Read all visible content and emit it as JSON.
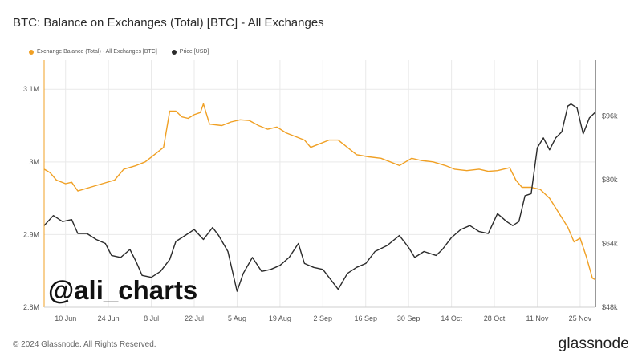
{
  "title": "BTC: Balance on Exchanges (Total) [BTC] - All Exchanges",
  "watermark": "@ali_charts",
  "footer": {
    "copyright": "© 2024 Glassnode. All Rights Reserved.",
    "brand": "glassnode"
  },
  "colors": {
    "balance": "#f0a024",
    "price": "#2b2b2b",
    "grid": "#e9e9e9",
    "axis": "#f0a024"
  },
  "chart_data": {
    "type": "line",
    "legend_placement": "top-left",
    "grid": true,
    "x_ticks": [
      "10 Jun",
      "24 Jun",
      "8 Jul",
      "22 Jul",
      "5 Aug",
      "19 Aug",
      "2 Sep",
      "16 Sep",
      "30 Sep",
      "14 Oct",
      "28 Oct",
      "11 Nov",
      "25 Nov"
    ],
    "x_range": [
      "2024-06-03",
      "2024-11-30"
    ],
    "y_left": {
      "ticks": [
        "2.8M",
        "2.9M",
        "3M",
        "3.1M"
      ],
      "tick_values": [
        2.8,
        2.9,
        3.0,
        3.1
      ],
      "range": [
        2.8,
        3.14
      ]
    },
    "y_right": {
      "ticks": [
        "$48k",
        "$64k",
        "$80k",
        "$96k"
      ],
      "tick_values": [
        48,
        64,
        80,
        96
      ],
      "range": [
        48,
        110
      ]
    },
    "series": [
      {
        "name": "Exchange Balance (Total) - All Exchanges [BTC]",
        "axis": "left",
        "color": "#f0a024",
        "points": [
          [
            "2024-06-03",
            2.99
          ],
          [
            "2024-06-05",
            2.985
          ],
          [
            "2024-06-07",
            2.975
          ],
          [
            "2024-06-10",
            2.97
          ],
          [
            "2024-06-12",
            2.972
          ],
          [
            "2024-06-14",
            2.96
          ],
          [
            "2024-06-18",
            2.965
          ],
          [
            "2024-06-22",
            2.97
          ],
          [
            "2024-06-26",
            2.975
          ],
          [
            "2024-06-29",
            2.99
          ],
          [
            "2024-07-03",
            2.995
          ],
          [
            "2024-07-06",
            3.0
          ],
          [
            "2024-07-09",
            3.01
          ],
          [
            "2024-07-12",
            3.02
          ],
          [
            "2024-07-14",
            3.07
          ],
          [
            "2024-07-16",
            3.07
          ],
          [
            "2024-07-18",
            3.062
          ],
          [
            "2024-07-20",
            3.06
          ],
          [
            "2024-07-22",
            3.065
          ],
          [
            "2024-07-24",
            3.068
          ],
          [
            "2024-07-25",
            3.08
          ],
          [
            "2024-07-27",
            3.052
          ],
          [
            "2024-07-31",
            3.05
          ],
          [
            "2024-08-03",
            3.055
          ],
          [
            "2024-08-06",
            3.058
          ],
          [
            "2024-08-09",
            3.057
          ],
          [
            "2024-08-12",
            3.05
          ],
          [
            "2024-08-15",
            3.045
          ],
          [
            "2024-08-18",
            3.048
          ],
          [
            "2024-08-21",
            3.04
          ],
          [
            "2024-08-24",
            3.035
          ],
          [
            "2024-08-27",
            3.03
          ],
          [
            "2024-08-29",
            3.02
          ],
          [
            "2024-09-01",
            3.025
          ],
          [
            "2024-09-04",
            3.03
          ],
          [
            "2024-09-07",
            3.03
          ],
          [
            "2024-09-10",
            3.02
          ],
          [
            "2024-09-13",
            3.01
          ],
          [
            "2024-09-17",
            3.007
          ],
          [
            "2024-09-21",
            3.005
          ],
          [
            "2024-09-24",
            3.0
          ],
          [
            "2024-09-27",
            2.995
          ],
          [
            "2024-10-01",
            3.005
          ],
          [
            "2024-10-04",
            3.002
          ],
          [
            "2024-10-08",
            3.0
          ],
          [
            "2024-10-12",
            2.995
          ],
          [
            "2024-10-15",
            2.99
          ],
          [
            "2024-10-19",
            2.988
          ],
          [
            "2024-10-23",
            2.99
          ],
          [
            "2024-10-26",
            2.987
          ],
          [
            "2024-10-29",
            2.988
          ],
          [
            "2024-11-02",
            2.992
          ],
          [
            "2024-11-04",
            2.975
          ],
          [
            "2024-11-06",
            2.965
          ],
          [
            "2024-11-09",
            2.965
          ],
          [
            "2024-11-12",
            2.962
          ],
          [
            "2024-11-15",
            2.95
          ],
          [
            "2024-11-18",
            2.93
          ],
          [
            "2024-11-21",
            2.91
          ],
          [
            "2024-11-23",
            2.89
          ],
          [
            "2024-11-25",
            2.895
          ],
          [
            "2024-11-27",
            2.87
          ],
          [
            "2024-11-29",
            2.84
          ],
          [
            "2024-11-30",
            2.838
          ]
        ]
      },
      {
        "name": "Price [USD]",
        "axis": "right",
        "color": "#2b2b2b",
        "points": [
          [
            "2024-06-03",
            68.5
          ],
          [
            "2024-06-06",
            71
          ],
          [
            "2024-06-09",
            69.5
          ],
          [
            "2024-06-12",
            70
          ],
          [
            "2024-06-14",
            66.5
          ],
          [
            "2024-06-17",
            66.5
          ],
          [
            "2024-06-20",
            65
          ],
          [
            "2024-06-23",
            64
          ],
          [
            "2024-06-25",
            61
          ],
          [
            "2024-06-28",
            60.5
          ],
          [
            "2024-07-01",
            62.5
          ],
          [
            "2024-07-03",
            59.5
          ],
          [
            "2024-07-05",
            56
          ],
          [
            "2024-07-08",
            55.5
          ],
          [
            "2024-07-11",
            57
          ],
          [
            "2024-07-14",
            60
          ],
          [
            "2024-07-16",
            64.5
          ],
          [
            "2024-07-19",
            66
          ],
          [
            "2024-07-22",
            67.5
          ],
          [
            "2024-07-25",
            65
          ],
          [
            "2024-07-28",
            68
          ],
          [
            "2024-07-30",
            66
          ],
          [
            "2024-08-02",
            62
          ],
          [
            "2024-08-05",
            52
          ],
          [
            "2024-08-07",
            56.5
          ],
          [
            "2024-08-10",
            60.5
          ],
          [
            "2024-08-13",
            57
          ],
          [
            "2024-08-16",
            57.5
          ],
          [
            "2024-08-19",
            58.5
          ],
          [
            "2024-08-22",
            60.5
          ],
          [
            "2024-08-25",
            64
          ],
          [
            "2024-08-27",
            59
          ],
          [
            "2024-08-30",
            58
          ],
          [
            "2024-09-02",
            57.5
          ],
          [
            "2024-09-05",
            54.5
          ],
          [
            "2024-09-07",
            52.5
          ],
          [
            "2024-09-10",
            56.5
          ],
          [
            "2024-09-13",
            58
          ],
          [
            "2024-09-16",
            59
          ],
          [
            "2024-09-19",
            62
          ],
          [
            "2024-09-23",
            63.5
          ],
          [
            "2024-09-27",
            66
          ],
          [
            "2024-09-30",
            63
          ],
          [
            "2024-10-02",
            60.5
          ],
          [
            "2024-10-05",
            62
          ],
          [
            "2024-10-09",
            61
          ],
          [
            "2024-10-11",
            62.5
          ],
          [
            "2024-10-14",
            65.5
          ],
          [
            "2024-10-17",
            67.5
          ],
          [
            "2024-10-20",
            68.5
          ],
          [
            "2024-10-23",
            67
          ],
          [
            "2024-10-26",
            66.5
          ],
          [
            "2024-10-29",
            71.5
          ],
          [
            "2024-11-01",
            69.5
          ],
          [
            "2024-11-03",
            68.5
          ],
          [
            "2024-11-05",
            69.5
          ],
          [
            "2024-11-07",
            76
          ],
          [
            "2024-11-09",
            76.5
          ],
          [
            "2024-11-11",
            88
          ],
          [
            "2024-11-13",
            90.5
          ],
          [
            "2024-11-15",
            87.5
          ],
          [
            "2024-11-17",
            90.5
          ],
          [
            "2024-11-19",
            92
          ],
          [
            "2024-11-21",
            98.5
          ],
          [
            "2024-11-22",
            99
          ],
          [
            "2024-11-24",
            98
          ],
          [
            "2024-11-26",
            91.5
          ],
          [
            "2024-11-28",
            95.5
          ],
          [
            "2024-11-30",
            97
          ]
        ]
      }
    ]
  }
}
